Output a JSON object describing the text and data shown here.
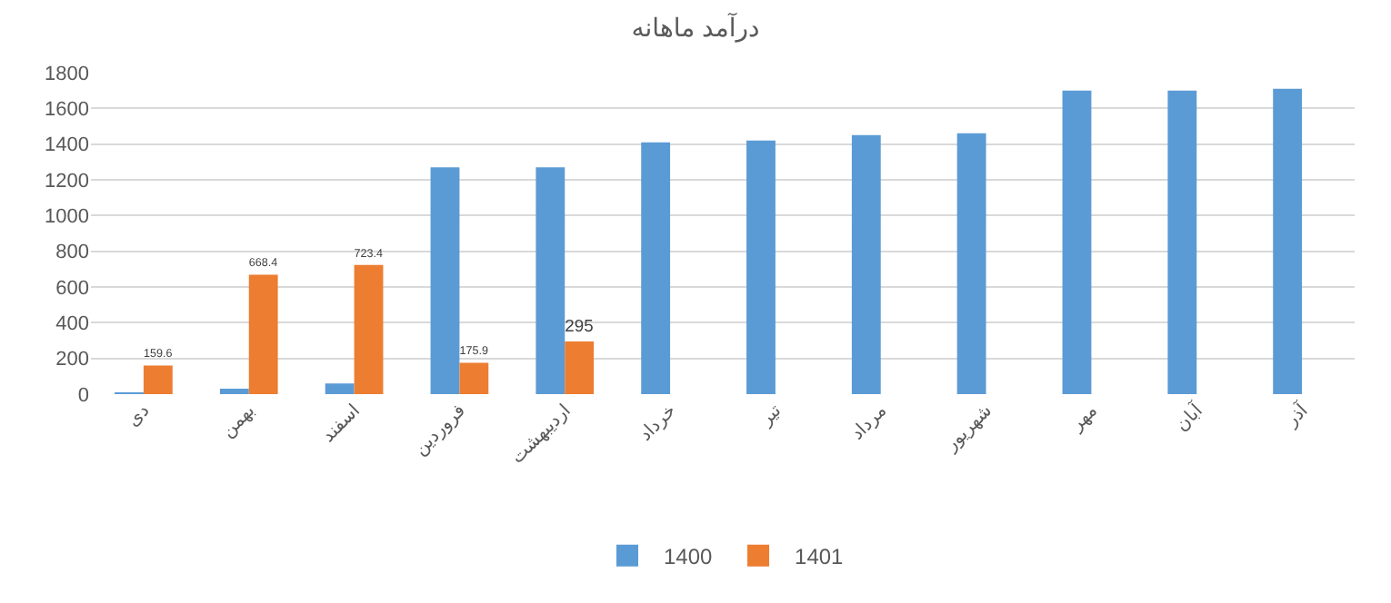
{
  "chart_data": {
    "type": "bar",
    "title": "درآمد ماهانه",
    "categories": [
      "دی",
      "بهمن",
      "اسفند",
      "فروردین",
      "اردیبهشت",
      "خرداد",
      "تیر",
      "مرداد",
      "شهریور",
      "مهر",
      "آبان",
      "آذر"
    ],
    "series": [
      {
        "name": "1400",
        "color": "#5b9bd5",
        "values": [
          5,
          30,
          60,
          1270,
          1270,
          1410,
          1420,
          1450,
          1460,
          1700,
          1700,
          1710
        ]
      },
      {
        "name": "1401",
        "color": "#ed7d31",
        "values": [
          159.6,
          668.4,
          723.4,
          175.9,
          295,
          null,
          null,
          null,
          null,
          null,
          null,
          null
        ],
        "value_labels": [
          "159.6",
          "668.4",
          "723.4",
          "175.9",
          "295",
          null,
          null,
          null,
          null,
          null,
          null,
          null
        ]
      }
    ],
    "ylim": [
      0,
      1800
    ],
    "yticks": [
      0,
      200,
      400,
      600,
      800,
      1000,
      1200,
      1400,
      1600,
      1800
    ],
    "grid": "y",
    "legend": "bottom"
  }
}
